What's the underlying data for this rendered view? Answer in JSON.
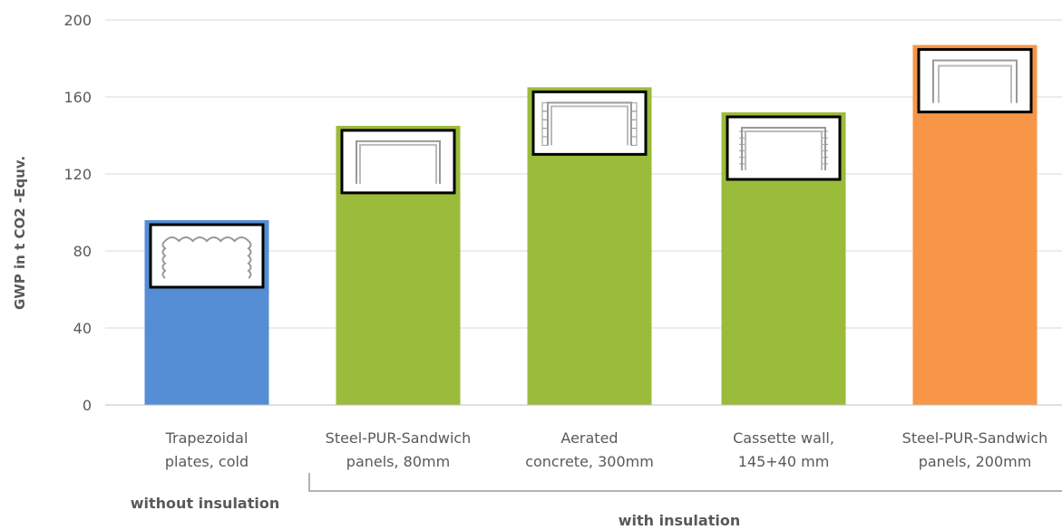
{
  "chart_data": {
    "type": "bar",
    "categories": [
      [
        "Trapezoidal",
        "plates, cold"
      ],
      [
        "Steel-PUR-Sandwich",
        "panels, 80mm"
      ],
      [
        "Aerated",
        "concrete, 300mm"
      ],
      [
        "Cassette wall,",
        "145+40 mm"
      ],
      [
        "Steel-PUR-Sandwich",
        "panels, 200mm"
      ]
    ],
    "values": [
      96,
      145,
      165,
      152,
      187
    ],
    "bar_colors": [
      "#558ED5",
      "#9BBB3B",
      "#9BBB3B",
      "#9BBB3B",
      "#F79646"
    ],
    "icons": [
      "trapezoidal-wall-icon",
      "sandwich-panel-80-icon",
      "aerated-concrete-icon",
      "cassette-wall-icon",
      "sandwich-panel-200-icon"
    ],
    "ylabel": "GWP in t CO2 -Equv.",
    "ylim": [
      0,
      200
    ],
    "yticks": [
      "0",
      "40",
      "80",
      "120",
      "160",
      "200"
    ],
    "grid": true,
    "groups": [
      {
        "label": "without insulation"
      },
      {
        "label": "with insulation"
      }
    ]
  }
}
